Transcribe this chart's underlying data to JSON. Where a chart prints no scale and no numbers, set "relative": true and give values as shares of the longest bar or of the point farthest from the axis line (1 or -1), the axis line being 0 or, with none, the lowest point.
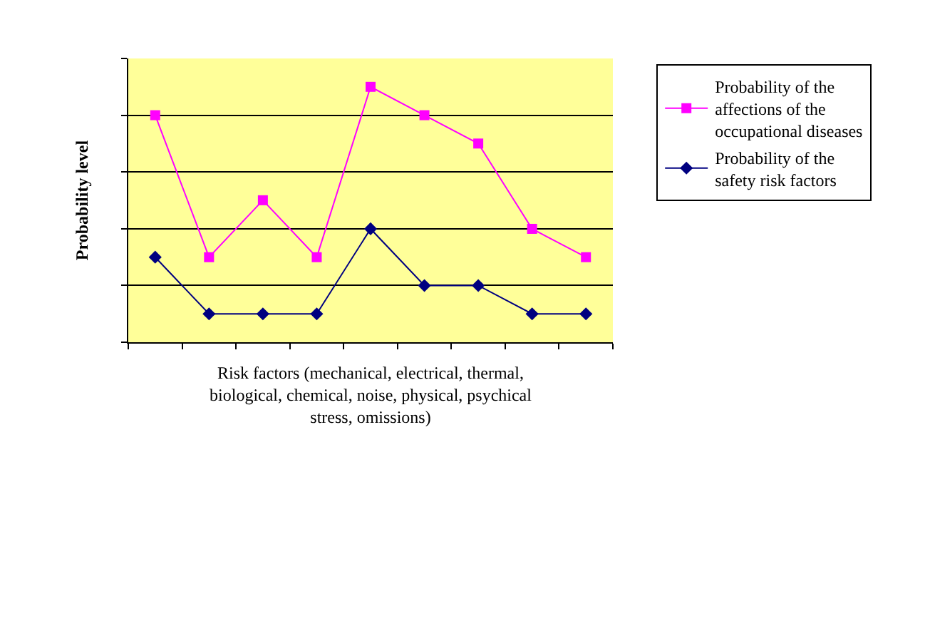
{
  "chart_data": {
    "type": "line",
    "relative": true,
    "ylabel": "Probability level",
    "xlabel": "Risk factors (mechanical, electrical, thermal, biological, chemical, noise, physical, psychical stress, omissions)",
    "categories": [
      null,
      null,
      null,
      null,
      null,
      null,
      null,
      null,
      null
    ],
    "series": [
      {
        "name": "Probability of the affections of the occupational diseases",
        "color": "#ff00ff",
        "marker": "square",
        "values": [
          0.889,
          0.333,
          0.556,
          0.333,
          1,
          0.889,
          0.778,
          0.444,
          0.333
        ]
      },
      {
        "name": "Probability of the safety risk factors",
        "color": "#000080",
        "marker": "diamond",
        "values": [
          0.333,
          0.111,
          0.111,
          0.111,
          0.444,
          0.222,
          0.222,
          0.111,
          0.111
        ]
      }
    ],
    "grid": "y",
    "legend": "right",
    "line_style": "solid"
  }
}
